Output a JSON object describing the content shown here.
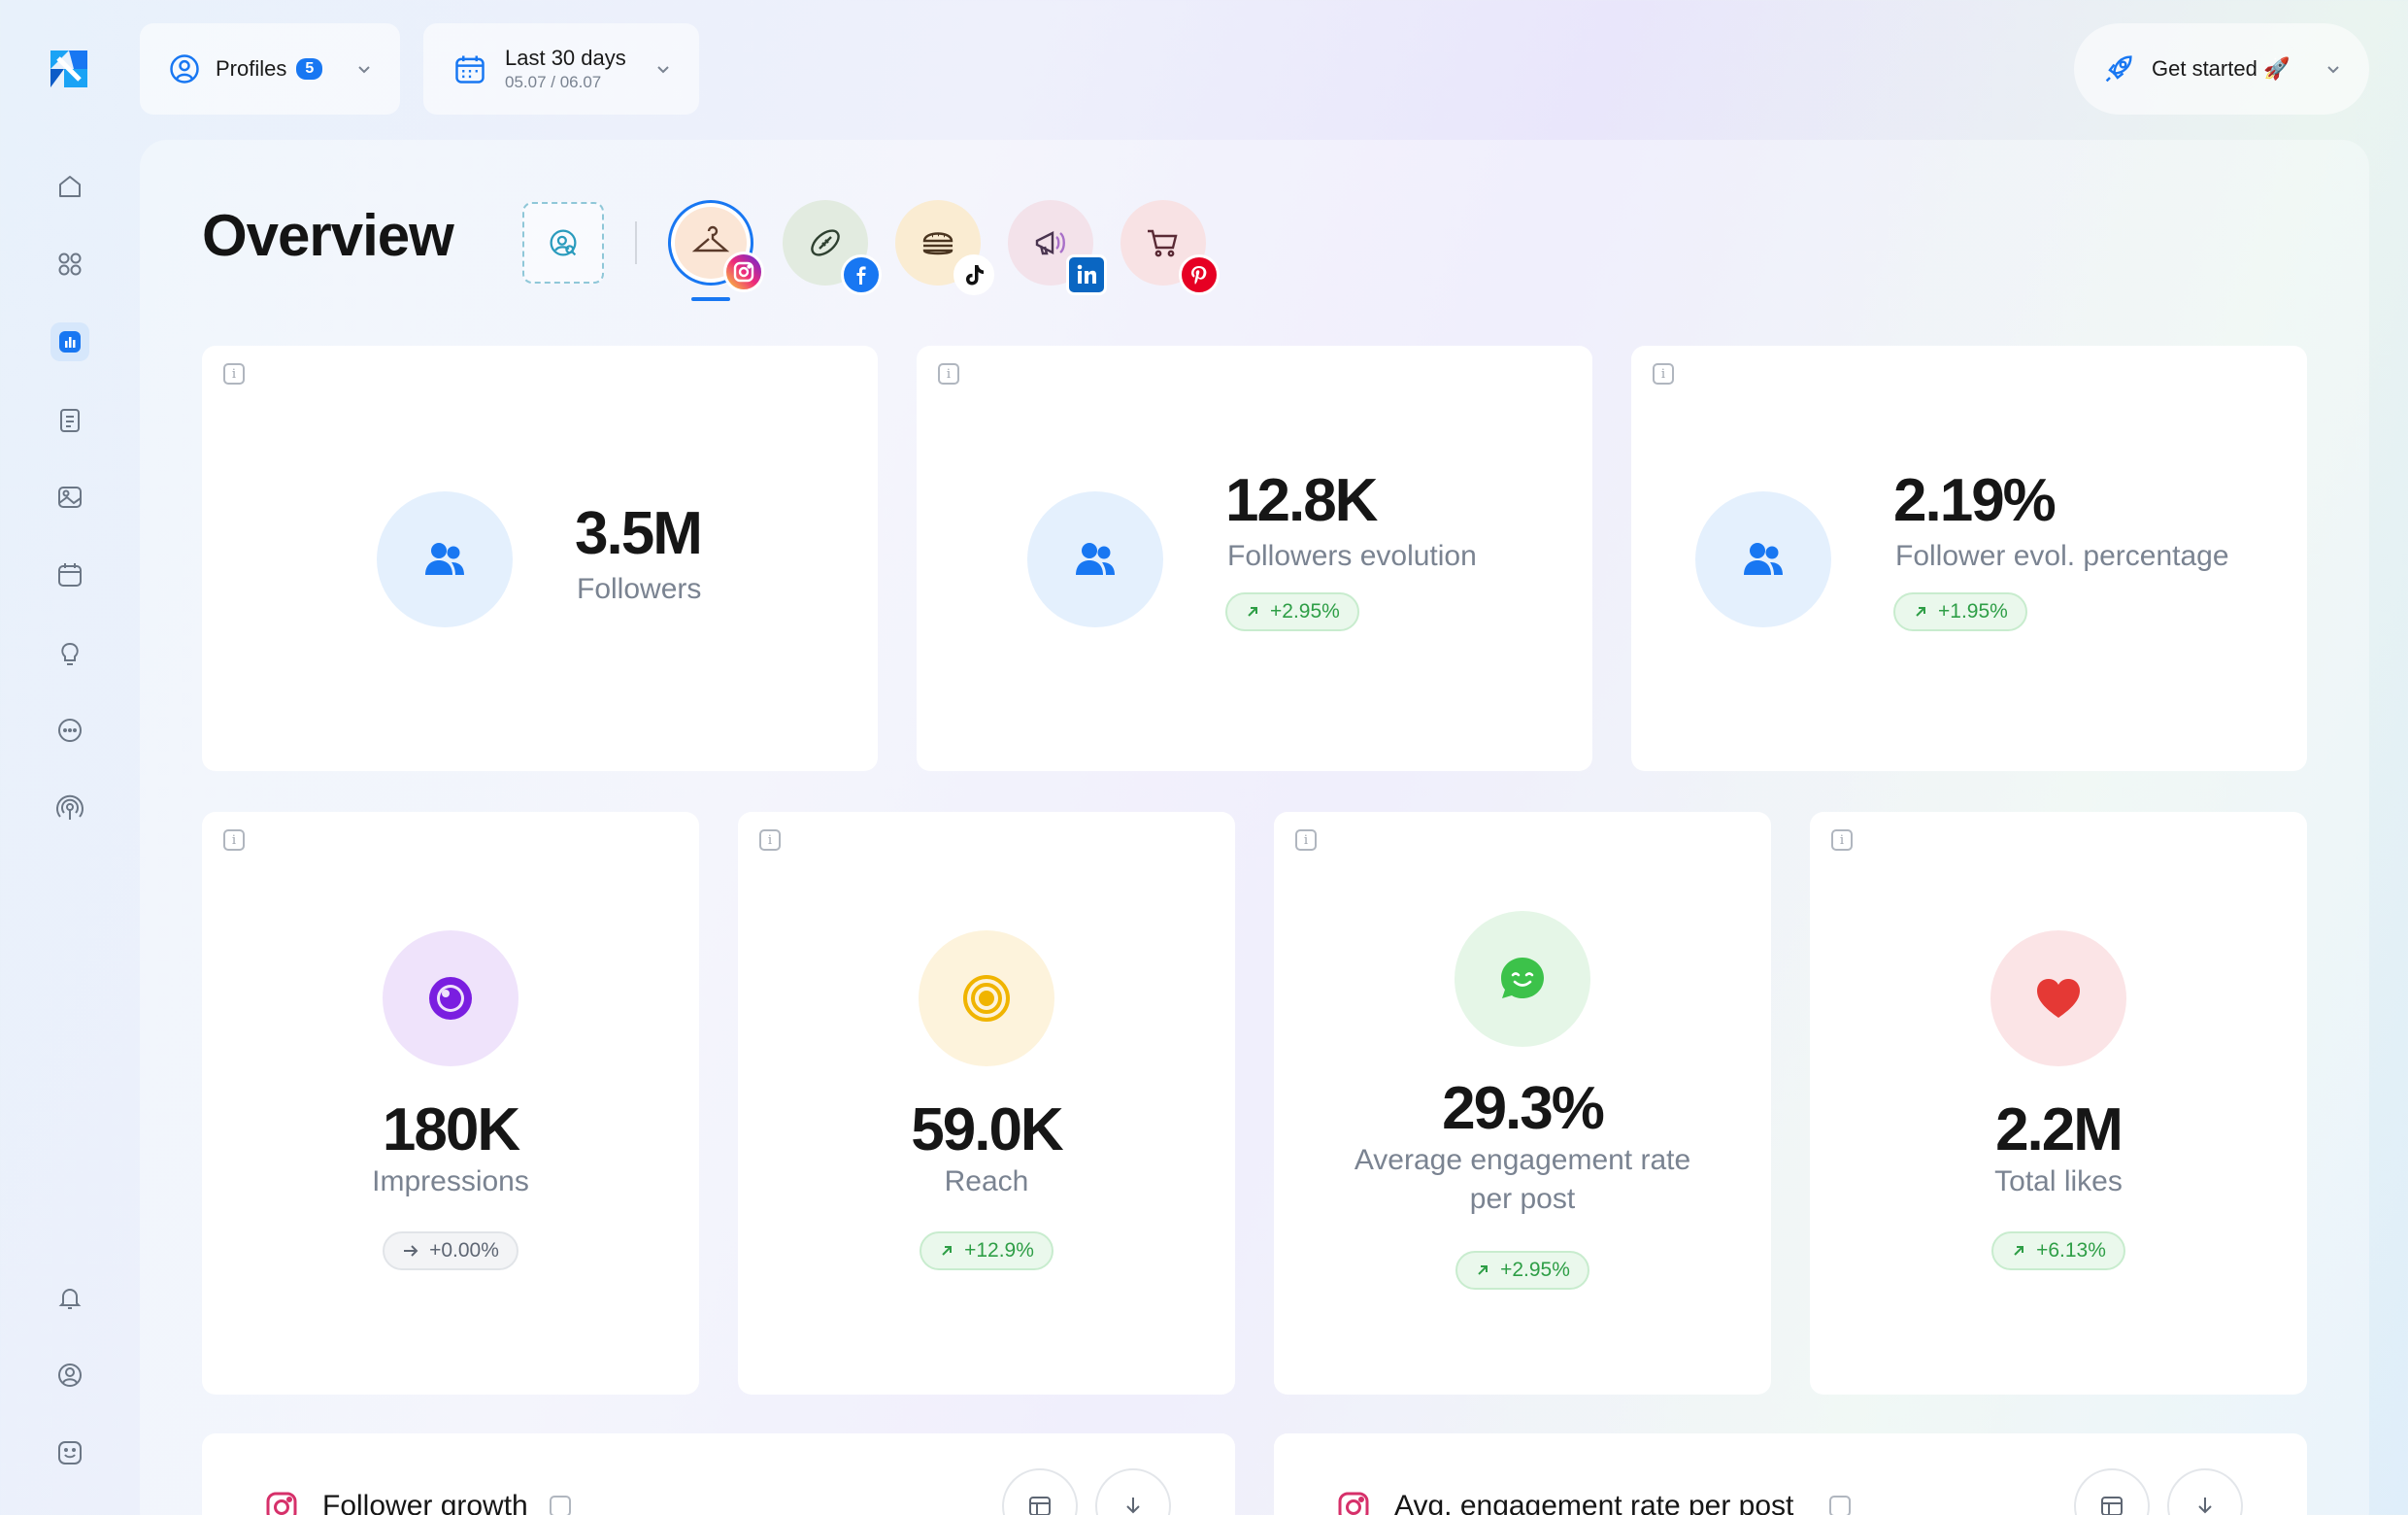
{
  "topbar": {
    "profiles_label": "Profiles",
    "profiles_count": "5",
    "date_label": "Last 30 days",
    "date_range": "05.07 / 06.07",
    "get_started_label": "Get started 🚀"
  },
  "sidebar": {
    "items": [
      {
        "name": "home-icon"
      },
      {
        "name": "apps-grid-icon"
      },
      {
        "name": "analytics-icon",
        "active": true
      },
      {
        "name": "clipboard-icon"
      },
      {
        "name": "image-icon"
      },
      {
        "name": "calendar-icon"
      },
      {
        "name": "lightbulb-icon"
      },
      {
        "name": "chat-icon"
      },
      {
        "name": "broadcast-icon"
      }
    ],
    "bottom_items": [
      {
        "name": "bell-icon"
      },
      {
        "name": "user-circle-icon"
      },
      {
        "name": "smiley-icon"
      }
    ]
  },
  "page": {
    "title": "Overview"
  },
  "accounts": [
    {
      "name": "fashion",
      "network": "instagram",
      "selected": true
    },
    {
      "name": "football",
      "network": "facebook"
    },
    {
      "name": "burger",
      "network": "tiktok"
    },
    {
      "name": "megaphone",
      "network": "linkedin"
    },
    {
      "name": "cart",
      "network": "pinterest"
    }
  ],
  "metrics_top": [
    {
      "value": "3.5M",
      "label": "Followers"
    },
    {
      "value": "12.8K",
      "label": "Followers evolution",
      "change": "+2.95%"
    },
    {
      "value": "2.19%",
      "label": "Follower evol. percentage",
      "change": "+1.95%"
    }
  ],
  "metrics_bottom": [
    {
      "value": "180K",
      "label": "Impressions",
      "change": "+0.00%"
    },
    {
      "value": "59.0K",
      "label": "Reach",
      "change": "+12.9%"
    },
    {
      "value": "29.3%",
      "label_line1": "Average engagement rate",
      "label_line2": "per post",
      "change": "+2.95%"
    },
    {
      "value": "2.2M",
      "label": "Total likes",
      "change": "+6.13%"
    }
  ],
  "sections": {
    "follower_growth": "Follower growth",
    "avg_engagement": "Avg. engagement rate per post"
  },
  "colors": {
    "accent": "#1877f2",
    "positive": "#2e9e46",
    "impressions": "#7a1ee0",
    "reach": "#f0b400",
    "engagement": "#3cc24a",
    "likes": "#e53935"
  }
}
